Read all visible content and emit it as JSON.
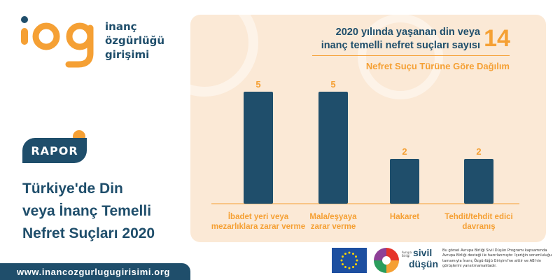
{
  "brand": {
    "name_lines": [
      "inanç",
      "özgürlüğü",
      "girişimi"
    ],
    "colors": {
      "navy": "#1f4e6b",
      "orange": "#f5a034",
      "panel": "#fbe9d6"
    }
  },
  "report": {
    "badge": "RAPOR",
    "title_lines": [
      "Türkiye'de Din",
      "veya İnanç Temelli",
      "Nefret Suçları 2020"
    ],
    "url": "www.inancozgurlugugirisimi.org"
  },
  "headline": {
    "lines": [
      "2020 yılında yaşanan din veya",
      "inanç temelli nefret suçları sayısı"
    ],
    "total": "14",
    "subtitle": "Nefret Suçu Türüne Göre Dağılım"
  },
  "chart_data": {
    "type": "bar",
    "categories": [
      [
        "İbadet yeri veya",
        "mezarlıklara zarar verme"
      ],
      [
        "Mala/eşyaya",
        "zarar verme"
      ],
      [
        "Hakaret"
      ],
      [
        "Tehdit/tehdit edici",
        "davranış"
      ]
    ],
    "values": [
      5,
      5,
      2,
      2
    ],
    "ylim": [
      0,
      5
    ],
    "bar_color": "#1f4e6b",
    "label_color": "#f5a034",
    "grid": false
  },
  "footer": {
    "sivil_small": "Avrupa Birliği",
    "sivil_lines": [
      "sivil",
      "düşün"
    ],
    "disclaimer": "Bu görsel Avrupa Birliği Sivil Düşün Programı kapsamında Avrupa Birliği desteği ile hazırlanmıştır. İçeriğin sorumluluğu tamamıyla İnanç Özgürlüğü Girişimi'ne aittir ve AB'nin görüşlerini yansıtmamaktadır."
  }
}
